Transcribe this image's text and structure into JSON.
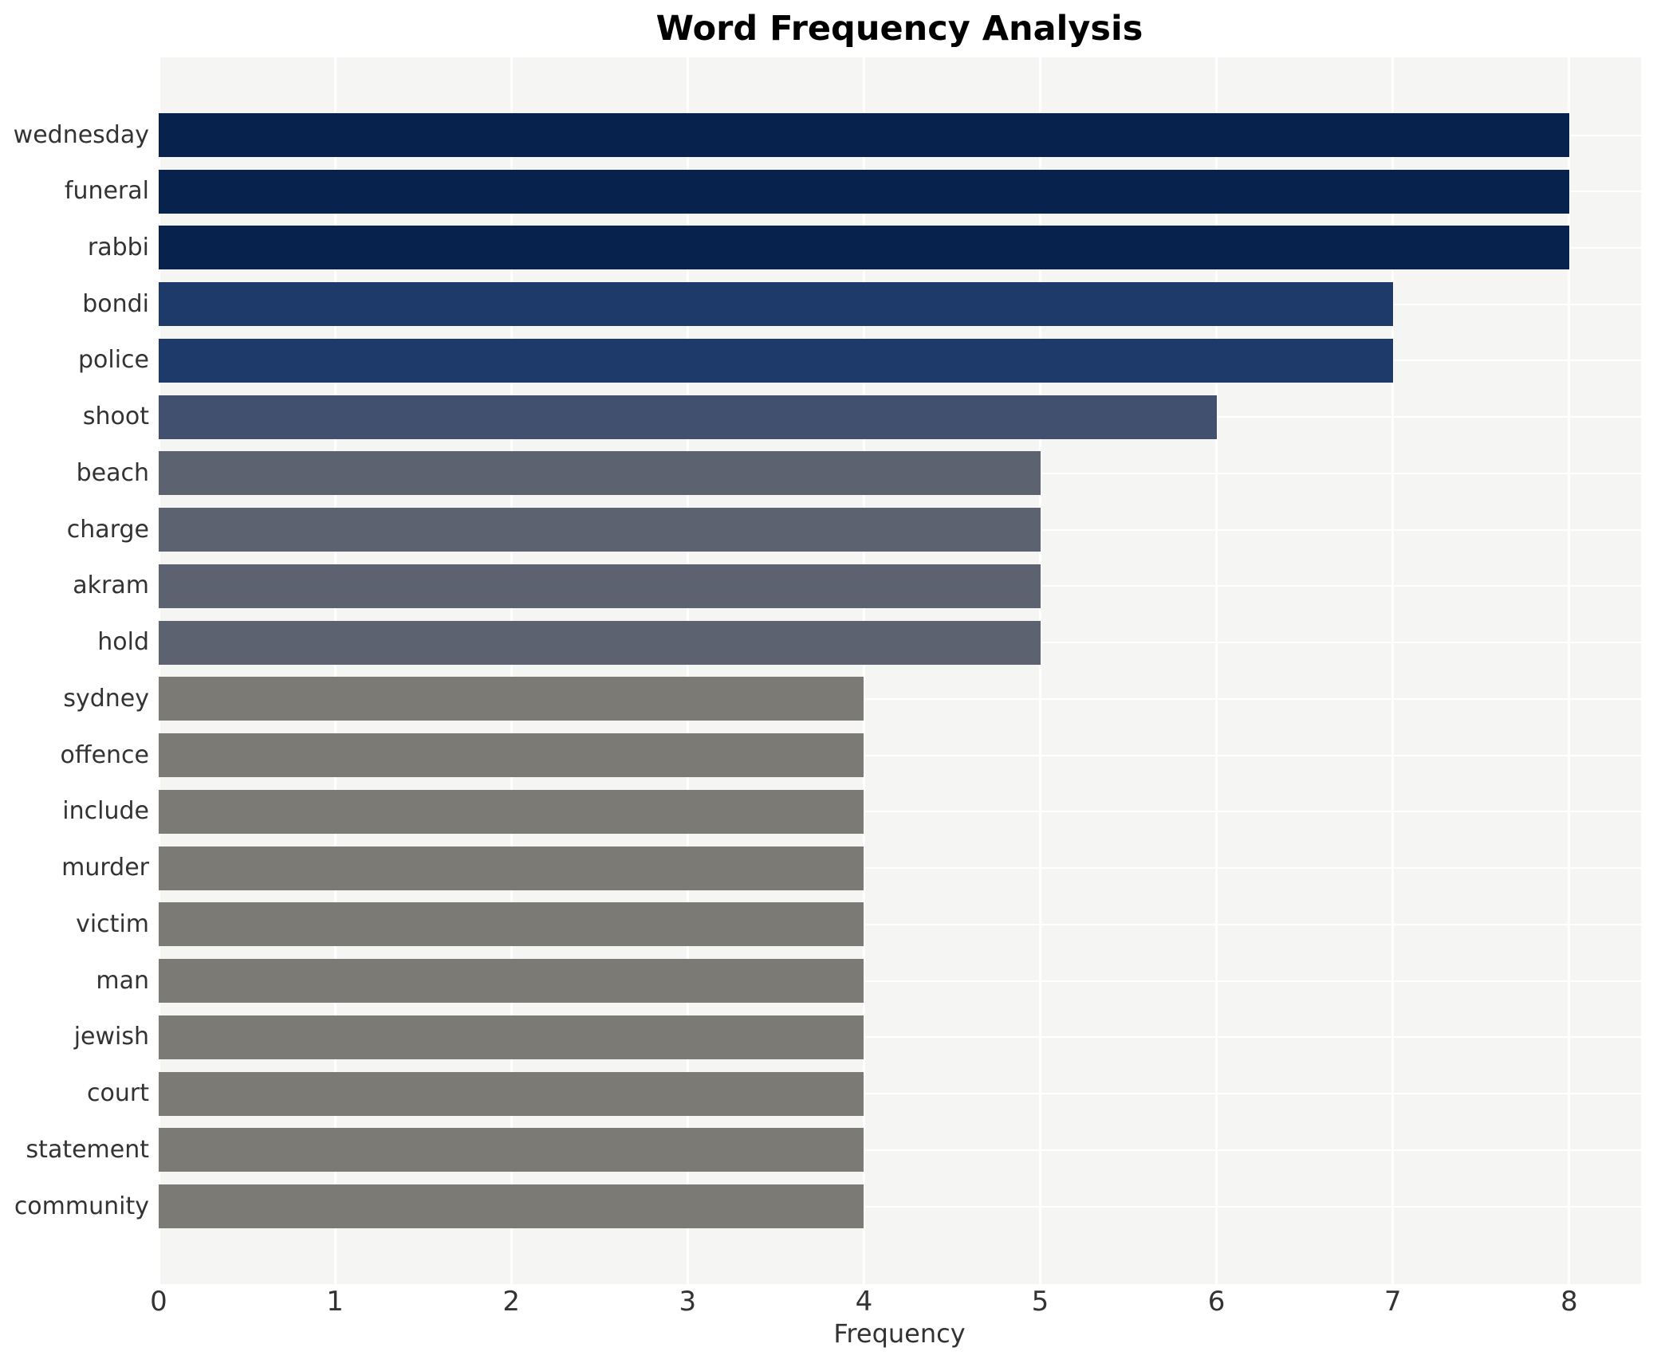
{
  "chart_data": {
    "type": "bar",
    "orientation": "horizontal",
    "title": "Word Frequency Analysis",
    "xlabel": "Frequency",
    "ylabel": "",
    "categories": [
      "wednesday",
      "funeral",
      "rabbi",
      "bondi",
      "police",
      "shoot",
      "beach",
      "charge",
      "akram",
      "hold",
      "sydney",
      "offence",
      "include",
      "murder",
      "victim",
      "man",
      "jewish",
      "court",
      "statement",
      "community"
    ],
    "values": [
      8,
      8,
      8,
      7,
      7,
      6,
      5,
      5,
      5,
      5,
      4,
      4,
      4,
      4,
      4,
      4,
      4,
      4,
      4,
      4
    ],
    "x_ticks": [
      "0",
      "1",
      "2",
      "3",
      "4",
      "5",
      "6",
      "7",
      "8"
    ],
    "xlim": [
      0,
      8.41
    ],
    "grid": true,
    "legend": "none",
    "plot_background_color": "#f5f5f4",
    "gridline_color": "#ffffff",
    "bar_colors": [
      "#07234d",
      "#07234d",
      "#07234d",
      "#1e3a6a",
      "#1e3a6a",
      "#42506f",
      "#5c6270",
      "#5c6270",
      "#5c6270",
      "#5c6270",
      "#7b7a74",
      "#7b7a74",
      "#7b7a74",
      "#7b7a74",
      "#7b7a74",
      "#7b7a74",
      "#7b7a74",
      "#7b7a74",
      "#7b7a74",
      "#7b7a74"
    ],
    "color_by_value": {
      "8": "#07234d",
      "7": "#1e3a6a",
      "6": "#42506f",
      "5": "#5c6270",
      "4": "#7b7a74"
    },
    "title_color": "#000000",
    "tick_label_color": "#333333"
  }
}
